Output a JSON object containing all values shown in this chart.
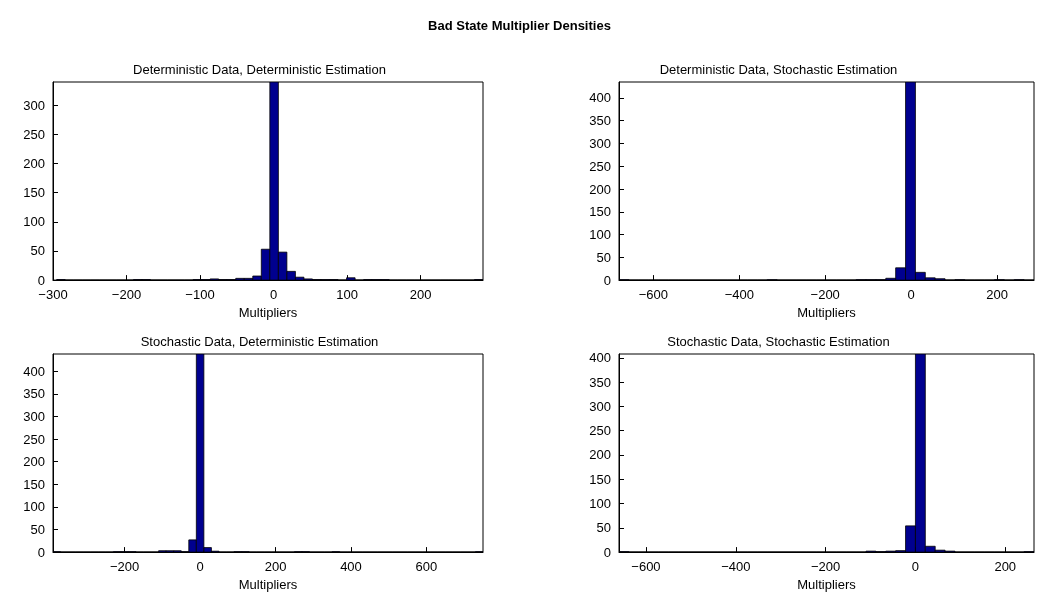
{
  "chart_data": [
    {
      "type": "histogram",
      "title": "Deterministic Data, Deterministic Estimation",
      "xlabel": "Multipliers",
      "annotations": [
        "Bad State Multiplier Densities"
      ],
      "color": "#00008f",
      "grid": false,
      "bins": [
        -295,
        -283.4,
        -271.8,
        -260.2,
        -248.6,
        -237,
        -225.4,
        -213.8,
        -202.2,
        -190.6,
        -179,
        -167.4,
        -155.8,
        -144.2,
        -132.6,
        -121,
        -109.4,
        -97.8,
        -86.2,
        -74.6,
        -63,
        -51.4,
        -39.8,
        -28.2,
        -16.6,
        -5,
        6.6,
        18.2,
        29.8,
        41.4,
        53,
        64.6,
        76.2,
        87.8,
        99.4,
        111,
        122.6,
        134.2,
        145.8,
        157.4,
        169,
        180.6,
        192.2,
        203.8,
        215.4,
        227,
        238.6,
        250.2,
        261.8,
        273.4,
        285
      ],
      "values": [
        1,
        0,
        0,
        0,
        0,
        0,
        0,
        0,
        0,
        1,
        1,
        0,
        0,
        0,
        0,
        0,
        1,
        1,
        2,
        1,
        1,
        3,
        3,
        7,
        53,
        340,
        48,
        15,
        5,
        2,
        1,
        1,
        1,
        0,
        4,
        0,
        1,
        1,
        1,
        0,
        0,
        0,
        0,
        0,
        0,
        0,
        0,
        0,
        0,
        1
      ],
      "xlim": [
        -300,
        285
      ],
      "xticks": [
        -300,
        -200,
        -100,
        0,
        100,
        200
      ],
      "ylim": [
        0,
        340
      ],
      "yticks": [
        0,
        50,
        100,
        150,
        200,
        250,
        300
      ]
    },
    {
      "type": "histogram",
      "title": "Deterministic Data, Stochastic Estimation",
      "xlabel": "Multipliers",
      "color": "#00008f",
      "grid": false,
      "bins": [
        -680,
        -657,
        -634,
        -611,
        -588,
        -565,
        -542,
        -519,
        -496,
        -473,
        -450,
        -427,
        -404,
        -381,
        -358,
        -335,
        -312,
        -289,
        -266,
        -243,
        -220,
        -197,
        -174,
        -151,
        -128,
        -105,
        -82,
        -59,
        -36,
        -13,
        10,
        33,
        56,
        79,
        102,
        125,
        148,
        171,
        194,
        217,
        240,
        263,
        286
      ],
      "values": [
        1,
        0,
        0,
        0,
        0,
        0,
        0,
        0,
        0,
        0,
        0,
        0,
        0,
        0,
        0,
        1,
        0,
        0,
        0,
        0,
        0,
        0,
        0,
        0,
        1,
        1,
        1,
        4,
        27,
        435,
        17,
        5,
        3,
        0,
        1,
        0,
        0,
        0,
        1,
        0,
        1,
        0
      ],
      "xlim": [
        -680,
        286
      ],
      "xticks": [
        -600,
        -400,
        -200,
        0,
        200
      ],
      "ylim": [
        0,
        435
      ],
      "yticks": [
        0,
        50,
        100,
        150,
        200,
        250,
        300,
        350,
        400
      ]
    },
    {
      "type": "histogram",
      "title": "Stochastic Data, Deterministic Estimation",
      "xlabel": "Multipliers",
      "color": "#00008f",
      "grid": false,
      "bins": [
        -390,
        -370,
        -350,
        -330,
        -310,
        -290,
        -270,
        -250,
        -230,
        -210,
        -190,
        -170,
        -150,
        -130,
        -110,
        -90,
        -70,
        -50,
        -30,
        -10,
        10,
        30,
        50,
        70,
        90,
        110,
        130,
        150,
        170,
        190,
        210,
        230,
        250,
        270,
        290,
        310,
        330,
        350,
        370,
        390,
        410,
        430,
        450,
        470,
        490,
        510,
        530,
        550,
        570,
        590,
        610,
        630,
        650,
        670,
        690,
        710,
        730,
        750
      ],
      "values": [
        1,
        0,
        0,
        0,
        0,
        0,
        0,
        0,
        1,
        1,
        1,
        0,
        0,
        0,
        3,
        3,
        3,
        1,
        27,
        438,
        10,
        2,
        0,
        0,
        1,
        1,
        0,
        0,
        0,
        0,
        0,
        0,
        1,
        1,
        0,
        0,
        0,
        1,
        0,
        0,
        0,
        0,
        0,
        0,
        0,
        0,
        0,
        0,
        0,
        0,
        0,
        0,
        0,
        0,
        0,
        0,
        1
      ],
      "xlim": [
        -390,
        750
      ],
      "xticks": [
        -200,
        0,
        200,
        400,
        600
      ],
      "ylim": [
        0,
        438
      ],
      "yticks": [
        0,
        50,
        100,
        150,
        200,
        250,
        300,
        350,
        400
      ]
    },
    {
      "type": "histogram",
      "title": "Stochastic Data, Stochastic Estimation",
      "xlabel": "Multipliers",
      "color": "#00008f",
      "grid": false,
      "bins": [
        -660,
        -638,
        -616,
        -594,
        -572,
        -550,
        -528,
        -506,
        -484,
        -462,
        -440,
        -418,
        -396,
        -374,
        -352,
        -330,
        -308,
        -286,
        -264,
        -242,
        -220,
        -198,
        -176,
        -154,
        -132,
        -110,
        -88,
        -66,
        -44,
        -22,
        0,
        22,
        44,
        66,
        88,
        110,
        132,
        154,
        176,
        198,
        220,
        242,
        264
      ],
      "values": [
        1,
        0,
        0,
        0,
        0,
        0,
        0,
        0,
        0,
        0,
        0,
        0,
        0,
        0,
        0,
        0,
        0,
        0,
        0,
        0,
        0,
        0,
        0,
        0,
        0,
        2,
        1,
        2,
        3,
        54,
        408,
        12,
        4,
        2,
        0,
        0,
        0,
        0,
        0,
        0,
        0,
        1
      ],
      "xlim": [
        -660,
        264
      ],
      "xticks": [
        -600,
        -400,
        -200,
        0,
        200
      ],
      "ylim": [
        0,
        408
      ],
      "yticks": [
        0,
        50,
        100,
        150,
        200,
        250,
        300,
        350,
        400
      ]
    }
  ]
}
